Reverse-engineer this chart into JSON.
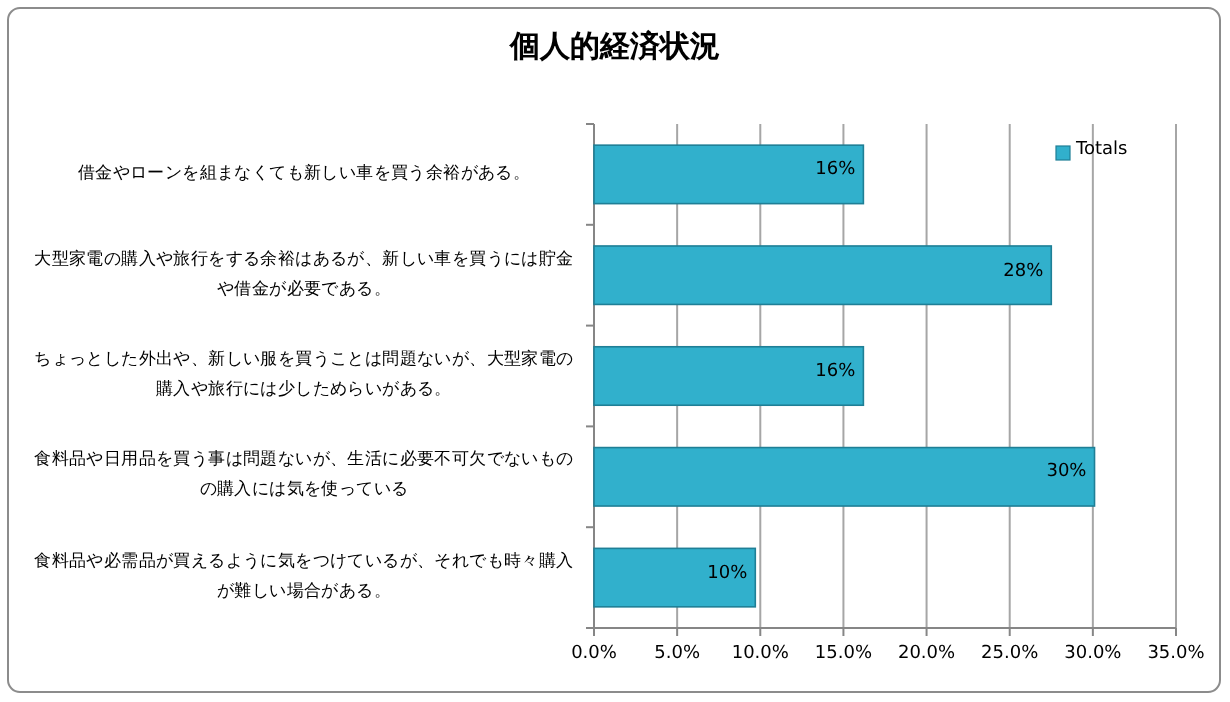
{
  "chart_data": {
    "type": "bar",
    "orientation": "horizontal",
    "title": "個人的経済状況",
    "categories": [
      "借金やローンを組まなくても新しい車を買う余裕がある。",
      "大型家電の購入や旅行をする余裕はあるが、新しい車を買うには貯金や借金が必要である。",
      "ちょっとした外出や、新しい服を買うことは問題ないが、大型家電の購入や旅行には少しためらいがある。",
      "食料品や日用品を買う事は問題ないが、生活に必要不可欠でないものの購入には気を使っている",
      "食料品や必需品が買えるように気をつけているが、それでも時々購入が難しい場合がある。"
    ],
    "series": [
      {
        "name": "Totals",
        "color": "#31b0cc",
        "values": [
          16.2,
          27.5,
          16.2,
          30.1,
          9.7
        ],
        "value_labels": [
          "16%",
          "28%",
          "16%",
          "30%",
          "10%"
        ]
      }
    ],
    "xlim": [
      0,
      35
    ],
    "xticks": [
      {
        "value": 0,
        "label": "0.0%"
      },
      {
        "value": 5,
        "label": "5.0%"
      },
      {
        "value": 10,
        "label": "10.0%"
      },
      {
        "value": 15,
        "label": "15.0%"
      },
      {
        "value": 20,
        "label": "20.0%"
      },
      {
        "value": 25,
        "label": "25.0%"
      },
      {
        "value": 30,
        "label": "30.0%"
      },
      {
        "value": 35,
        "label": "35.0%"
      }
    ],
    "grid": "x",
    "legend": "top right"
  }
}
